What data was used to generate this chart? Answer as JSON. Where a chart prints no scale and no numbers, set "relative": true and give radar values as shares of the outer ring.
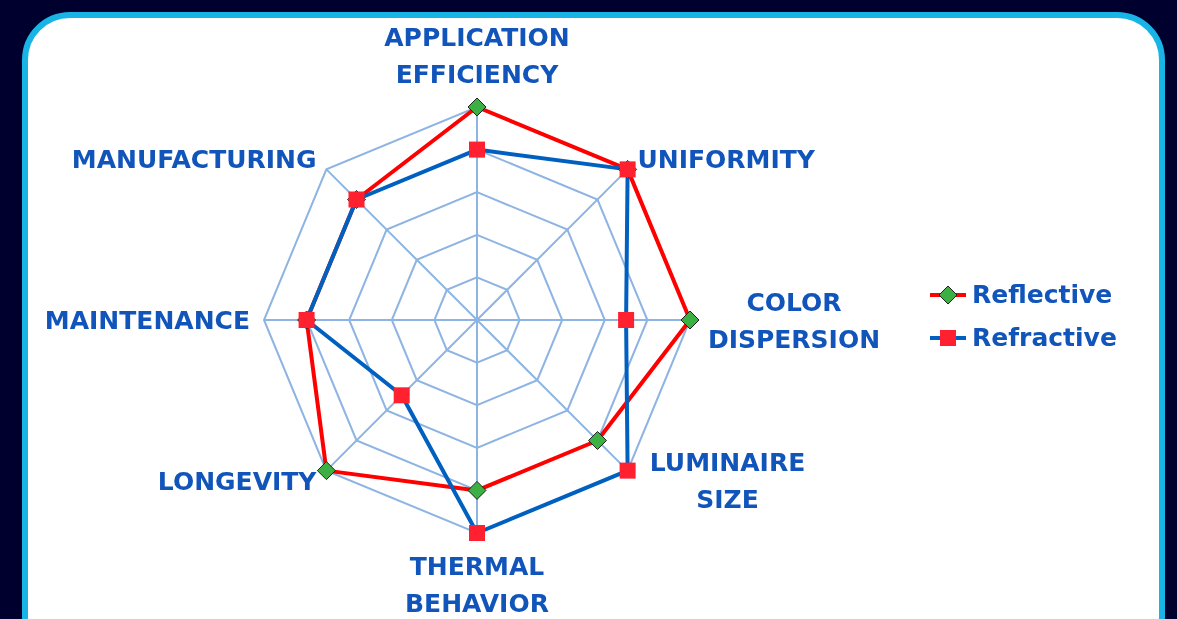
{
  "chart_data": {
    "type": "radar",
    "relative": true,
    "categories": [
      "APPLICATION EFFICIENCY",
      "UNIFORMITY",
      "COLOR DISPERSION",
      "LUMINAIRE SIZE",
      "THERMAL BEHAVIOR",
      "LONGEVITY",
      "MAINTENANCE",
      "MANUFACTURING"
    ],
    "legend": "right",
    "grid": true,
    "series": [
      {
        "name": "Reflective",
        "color": "#ff0000",
        "marker": "diamond",
        "colors": [
          "#3cb043",
          "#3cb043",
          "#3cb043",
          "#3cb043",
          "#3cb043",
          "#3cb043",
          "#3cb043",
          "#3cb043"
        ],
        "values": [
          1.0,
          1.0,
          1.0,
          0.8,
          0.8,
          1.0,
          0.8,
          0.8
        ]
      },
      {
        "name": "Refractive",
        "color": "#0060c0",
        "marker": "square",
        "colors": [
          "#ff2030",
          "#ff2030",
          "#ff2030",
          "#ff2030",
          "#ff2030",
          "#ff2030",
          "#ff2030",
          "#ff2030"
        ],
        "values": [
          0.8,
          1.0,
          0.7,
          1.0,
          1.0,
          0.5,
          0.8,
          0.8
        ]
      }
    ]
  }
}
